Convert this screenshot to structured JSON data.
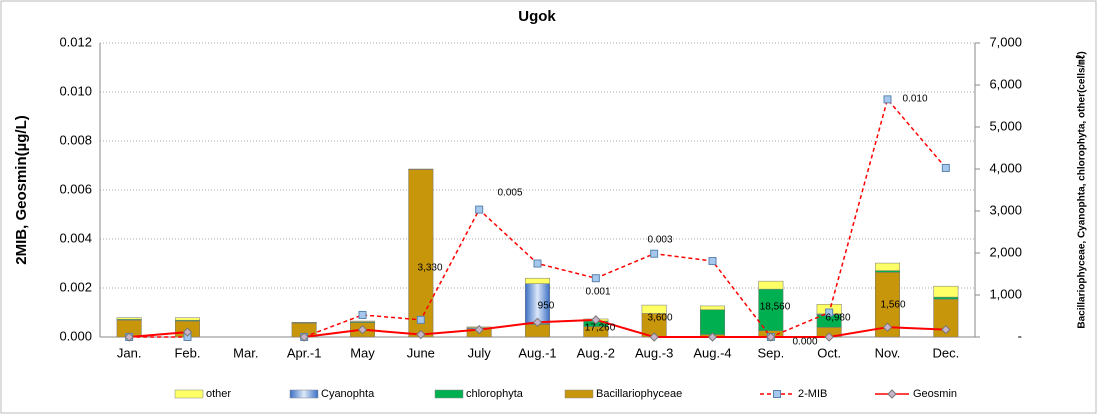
{
  "chart_data": {
    "type": "bar",
    "title": "Ugok",
    "ylabel": "2MIB, Geosmin(µg/L)",
    "y2label": "Bacillariophyceae, Cyanophta, chlorophyta, other(cells/㎖)",
    "categories": [
      "Jan.",
      "Feb.",
      "Mar.",
      "Apr.-1",
      "May",
      "June",
      "July",
      "Aug.-1",
      "Aug.-2",
      "Aug.-3",
      "Aug.-4",
      "Sep.",
      "Oct.",
      "Nov.",
      "Dec."
    ],
    "series": [
      {
        "name": "other",
        "color": "#ffff66",
        "axis": "y2",
        "values": [
          40,
          60,
          0,
          10,
          20,
          10,
          20,
          130,
          50,
          200,
          90,
          190,
          230,
          180,
          260
        ]
      },
      {
        "name": "Cyanophta",
        "color": "#8db3e2",
        "axis": "y2",
        "values": [
          0,
          0,
          0,
          0,
          0,
          0,
          20,
          950,
          0,
          0,
          0,
          0,
          20,
          0,
          0
        ]
      },
      {
        "name": "chlorophyta",
        "color": "#00b050",
        "axis": "y2",
        "values": [
          20,
          20,
          0,
          10,
          20,
          0,
          0,
          20,
          130,
          0,
          590,
          990,
          300,
          40,
          50
        ]
      },
      {
        "name": "Bacillariophyceae",
        "color": "#c8960a",
        "axis": "y2",
        "values": [
          400,
          380,
          0,
          330,
          340,
          3990,
          200,
          300,
          250,
          560,
          60,
          150,
          230,
          1540,
          900
        ]
      },
      {
        "name": "2-MIB",
        "type": "line",
        "color": "#ff0000",
        "dashed": true,
        "marker": "square",
        "marker_color": "#a6c8ec",
        "axis": "y",
        "values": [
          0,
          0,
          null,
          0,
          0.0009,
          0.0007,
          0.0052,
          0.003,
          0.0024,
          0.0034,
          0.0031,
          0,
          0.001,
          0.0097,
          0.0069
        ]
      },
      {
        "name": "Geosmin",
        "type": "line",
        "color": "#ff0000",
        "dashed": false,
        "marker": "diamond",
        "marker_color": "#c8b4c8",
        "axis": "y",
        "values": [
          0,
          0.0002,
          null,
          0,
          0.0003,
          0.0001,
          0.0003,
          0.0006,
          0.0007,
          0,
          0,
          0,
          0,
          0.0004,
          0.0003
        ]
      }
    ],
    "ylim": [
      0,
      0.012
    ],
    "yticks": [
      {
        "value": 0,
        "label": "0.000"
      },
      {
        "value": 0.002,
        "label": "0.002"
      },
      {
        "value": 0.004,
        "label": "0.004"
      },
      {
        "value": 0.006,
        "label": "0.006"
      },
      {
        "value": 0.008,
        "label": "0.008"
      },
      {
        "value": 0.01,
        "label": "0.010"
      },
      {
        "value": 0.012,
        "label": "0.012"
      }
    ],
    "y2lim": [
      0,
      7000
    ],
    "y2ticks": [
      {
        "value": 0,
        "label": "-"
      },
      {
        "value": 1000,
        "label": "1,000"
      },
      {
        "value": 2000,
        "label": "2,000"
      },
      {
        "value": 3000,
        "label": "3,000"
      },
      {
        "value": 4000,
        "label": "4,000"
      },
      {
        "value": 5000,
        "label": "5,000"
      },
      {
        "value": 6000,
        "label": "6,000"
      },
      {
        "value": 7000,
        "label": "7,000"
      }
    ],
    "grid": true,
    "legend": "bottom",
    "annotations": [
      "0.005",
      "0.003",
      "0.001",
      "0.000",
      "0.010",
      "3,330",
      "950",
      "17,260",
      "3,600",
      "18,560",
      "6,980",
      "1,560"
    ]
  }
}
